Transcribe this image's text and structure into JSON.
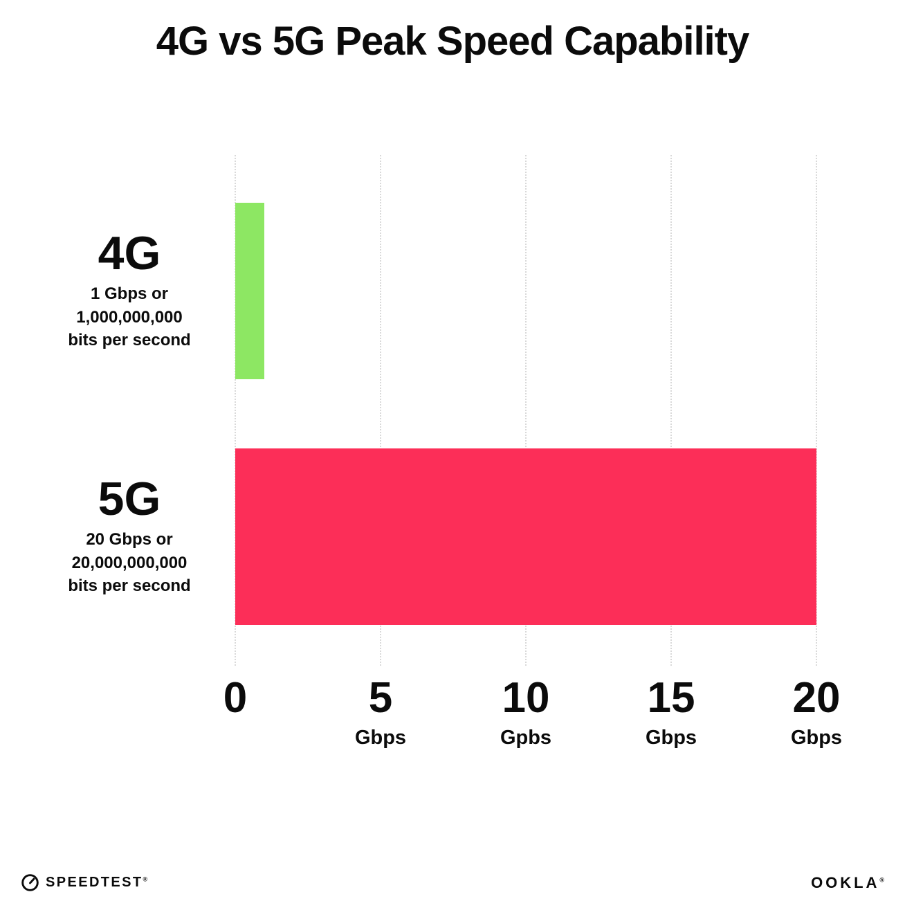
{
  "title": "4G vs 5G Peak Speed Capability",
  "chart_data": {
    "type": "bar",
    "orientation": "horizontal",
    "title": "4G vs 5G Peak Speed Capability",
    "categories": [
      "4G",
      "5G"
    ],
    "values": [
      1,
      20
    ],
    "bar_colors": [
      "#8de763",
      "#fc2e58"
    ],
    "category_sublabels": [
      [
        "1 Gbps or",
        "1,000,000,000",
        "bits per second"
      ],
      [
        "20 Gbps or",
        "20,000,000,000",
        "bits per second"
      ]
    ],
    "xlim": [
      0,
      20
    ],
    "x_ticks": [
      {
        "value": 0,
        "label": "0",
        "unit": ""
      },
      {
        "value": 5,
        "label": "5",
        "unit": "Gbps"
      },
      {
        "value": 10,
        "label": "10",
        "unit": "Gpbs"
      },
      {
        "value": 15,
        "label": "15",
        "unit": "Gbps"
      },
      {
        "value": 20,
        "label": "20",
        "unit": "Gbps"
      }
    ],
    "grid": "dotted-vertical",
    "legend": "none"
  },
  "footer": {
    "speedtest_label": "SPEEDTEST",
    "speedtest_mark": "®",
    "ookla_label": "OOKLA",
    "ookla_mark": "®"
  }
}
